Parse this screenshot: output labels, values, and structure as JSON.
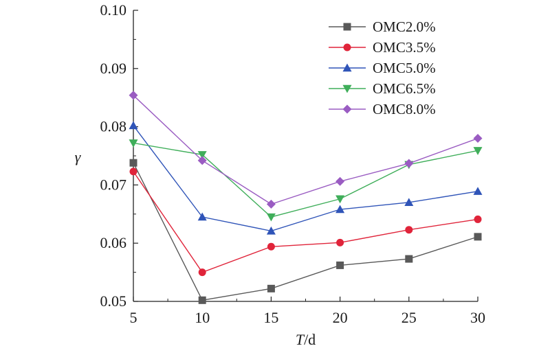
{
  "chart_data": {
    "type": "line",
    "title": "",
    "xlabel_italic": "T",
    "xlabel_unit": "/d",
    "ylabel": "γ",
    "x": [
      5,
      10,
      15,
      20,
      25,
      30
    ],
    "xlim": [
      5,
      30
    ],
    "ylim": [
      0.05,
      0.1
    ],
    "x_ticks": [
      "5",
      "10",
      "15",
      "20",
      "25",
      "30"
    ],
    "y_ticks": [
      "0.05",
      "0.06",
      "0.07",
      "0.08",
      "0.09",
      "0.10"
    ],
    "grid": false,
    "legend_position": "top-right",
    "series": [
      {
        "name": "OMC2.0%",
        "marker": "square",
        "color": "#595959",
        "values": [
          0.0738,
          0.0502,
          0.0522,
          0.0562,
          0.0573,
          0.0611
        ]
      },
      {
        "name": "OMC3.5%",
        "marker": "circle",
        "color": "#e0243a",
        "values": [
          0.0723,
          0.055,
          0.0594,
          0.0601,
          0.0623,
          0.0641
        ]
      },
      {
        "name": "OMC5.0%",
        "marker": "triangle-up",
        "color": "#2f54b8",
        "values": [
          0.0802,
          0.0645,
          0.0621,
          0.0658,
          0.067,
          0.0689
        ]
      },
      {
        "name": "OMC6.5%",
        "marker": "triangle-down",
        "color": "#3fae5a",
        "values": [
          0.0772,
          0.0752,
          0.0645,
          0.0676,
          0.0735,
          0.0759
        ]
      },
      {
        "name": "OMC8.0%",
        "marker": "diamond",
        "color": "#9a5cc2",
        "values": [
          0.0854,
          0.0742,
          0.0667,
          0.0706,
          0.0737,
          0.078
        ]
      }
    ]
  }
}
